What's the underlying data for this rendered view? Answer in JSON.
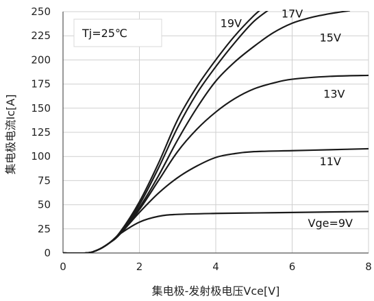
{
  "chart_data": {
    "type": "line",
    "title": "",
    "xlabel": "集电极-发射极电压Vce[V]",
    "ylabel": "集电极电流Ic[A]",
    "xlim": [
      0,
      8
    ],
    "ylim": [
      0,
      250
    ],
    "xticks": [
      0,
      2,
      4,
      6,
      8
    ],
    "yticks": [
      0,
      25,
      50,
      75,
      100,
      125,
      150,
      175,
      200,
      225,
      250
    ],
    "grid": true,
    "annotation": "Tj=25℃",
    "series": [
      {
        "name": "Vge=9V",
        "x": [
          0,
          0.6,
          0.9,
          1.2,
          1.5,
          2.0,
          2.5,
          3.0,
          4.0,
          5.0,
          6.0,
          7.0,
          8.0
        ],
        "y": [
          0,
          0,
          3,
          10,
          20,
          32,
          38,
          40,
          41,
          41.5,
          42,
          42.5,
          43
        ]
      },
      {
        "name": "11V",
        "x": [
          0,
          0.6,
          0.9,
          1.2,
          1.5,
          2.0,
          2.5,
          3.0,
          3.5,
          4.0,
          4.5,
          5.0,
          6.0,
          7.0,
          8.0
        ],
        "y": [
          0,
          0,
          3,
          10,
          20,
          42,
          62,
          78,
          90,
          99,
          103,
          105,
          106,
          107,
          108
        ]
      },
      {
        "name": "13V",
        "x": [
          0,
          0.6,
          0.9,
          1.2,
          1.5,
          2.0,
          2.5,
          3.0,
          3.5,
          4.0,
          4.5,
          5.0,
          5.5,
          6.0,
          7.0,
          8.0
        ],
        "y": [
          0,
          0,
          3,
          10,
          20,
          45,
          75,
          105,
          128,
          146,
          160,
          170,
          176,
          180,
          183,
          184
        ]
      },
      {
        "name": "15V",
        "x": [
          0,
          0.6,
          0.9,
          1.2,
          1.5,
          2.0,
          2.5,
          3.0,
          3.5,
          4.0,
          4.5,
          5.0,
          5.5,
          6.0,
          6.5,
          7.0,
          7.5
        ],
        "y": [
          0,
          0,
          3,
          10,
          20,
          47,
          80,
          117,
          150,
          178,
          198,
          214,
          228,
          238,
          244,
          248,
          251
        ]
      },
      {
        "name": "17V",
        "x": [
          0,
          0.6,
          0.9,
          1.2,
          1.5,
          2.0,
          2.5,
          3.0,
          3.5,
          4.0,
          4.5,
          5.0,
          5.5
        ],
        "y": [
          0,
          0,
          3,
          10,
          21,
          50,
          88,
          130,
          165,
          193,
          218,
          240,
          255
        ]
      },
      {
        "name": "19V",
        "x": [
          0,
          0.6,
          0.9,
          1.2,
          1.5,
          2.0,
          2.5,
          3.0,
          3.5,
          4.0,
          4.5,
          5.0,
          5.3
        ],
        "y": [
          0,
          0,
          3,
          10,
          22,
          53,
          93,
          138,
          172,
          200,
          225,
          246,
          256
        ]
      }
    ]
  }
}
